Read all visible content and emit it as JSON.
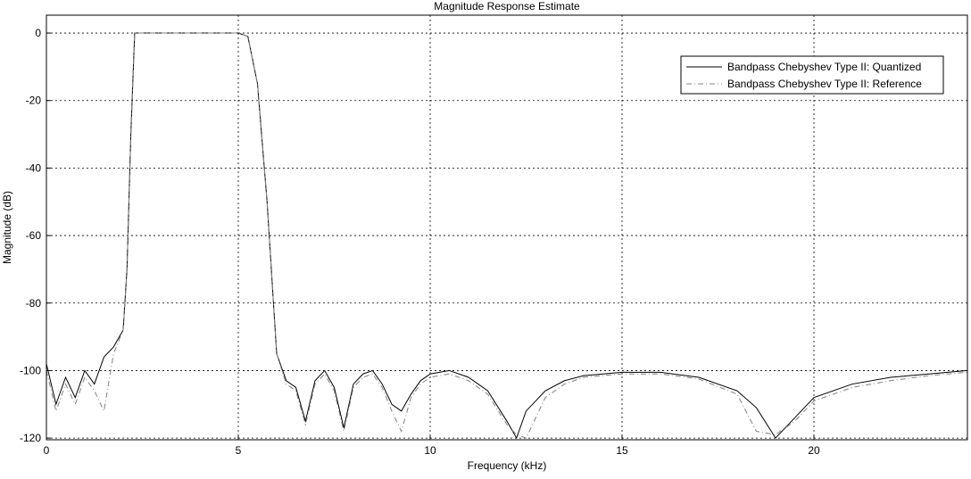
{
  "chart_data": {
    "type": "line",
    "title": "Magnitude Response Estimate",
    "x_label": "Frequency (kHz)",
    "y_label": "Magnitude (dB)",
    "x": [
      0,
      0.25,
      0.5,
      0.75,
      1.0,
      1.25,
      1.5,
      1.75,
      2.0,
      2.1,
      2.2,
      2.3,
      2.5,
      3,
      4,
      5,
      5.25,
      5.5,
      5.75,
      6.0,
      6.25,
      6.5,
      6.75,
      7.0,
      7.25,
      7.5,
      7.75,
      8.0,
      8.25,
      8.5,
      8.75,
      9.0,
      9.25,
      9.5,
      9.75,
      10,
      10.5,
      11,
      11.5,
      12,
      12.25,
      12.5,
      13,
      13.5,
      14,
      15,
      16,
      17,
      18,
      18.5,
      19,
      19.5,
      20,
      21,
      22,
      23,
      24
    ],
    "series": [
      {
        "name": "Bandpass Chebyshev Type II: Quantized",
        "color": "#000000",
        "dash": "solid",
        "values": [
          -98,
          -110,
          -102,
          -108,
          -100,
          -104,
          -96,
          -93,
          -88,
          -70,
          -30,
          0,
          0,
          0,
          0,
          0,
          -1,
          -15,
          -50,
          -95,
          -103,
          -105,
          -115,
          -103,
          -100,
          -105,
          -117,
          -104,
          -101,
          -100,
          -104,
          -110,
          -112,
          -107,
          -103,
          -101,
          -100,
          -102,
          -106,
          -115,
          -120,
          -112,
          -106,
          -103,
          -101.5,
          -100.5,
          -100.5,
          -102,
          -106,
          -111,
          -120,
          -114,
          -108,
          -104,
          -102,
          -101,
          -100
        ]
      },
      {
        "name": "Bandpass Chebyshev Type II: Reference",
        "color": "#808080",
        "dash": "dashdot",
        "values": [
          -100,
          -112,
          -104,
          -110,
          -102,
          -106,
          -112,
          -95,
          -88,
          -70,
          -30,
          0,
          0,
          0,
          0,
          0,
          -1,
          -15,
          -50,
          -95,
          -104,
          -106,
          -116,
          -104,
          -101,
          -106,
          -118,
          -105,
          -102,
          -101,
          -105,
          -112,
          -118,
          -108,
          -104,
          -102,
          -101,
          -103,
          -107,
          -116,
          -119,
          -120,
          -108,
          -104,
          -102,
          -101,
          -101,
          -102.5,
          -107,
          -118,
          -119,
          -115,
          -109,
          -105,
          -103,
          -101.5,
          -100.5
        ]
      }
    ],
    "xlim": [
      0,
      24
    ],
    "ylim": [
      -120.5,
      5.3
    ],
    "xticks": [
      0,
      5,
      10,
      15,
      20
    ],
    "yticks": [
      0,
      -20,
      -40,
      -60,
      -80,
      -100,
      -120
    ],
    "grid": true,
    "legend": "upper right"
  }
}
